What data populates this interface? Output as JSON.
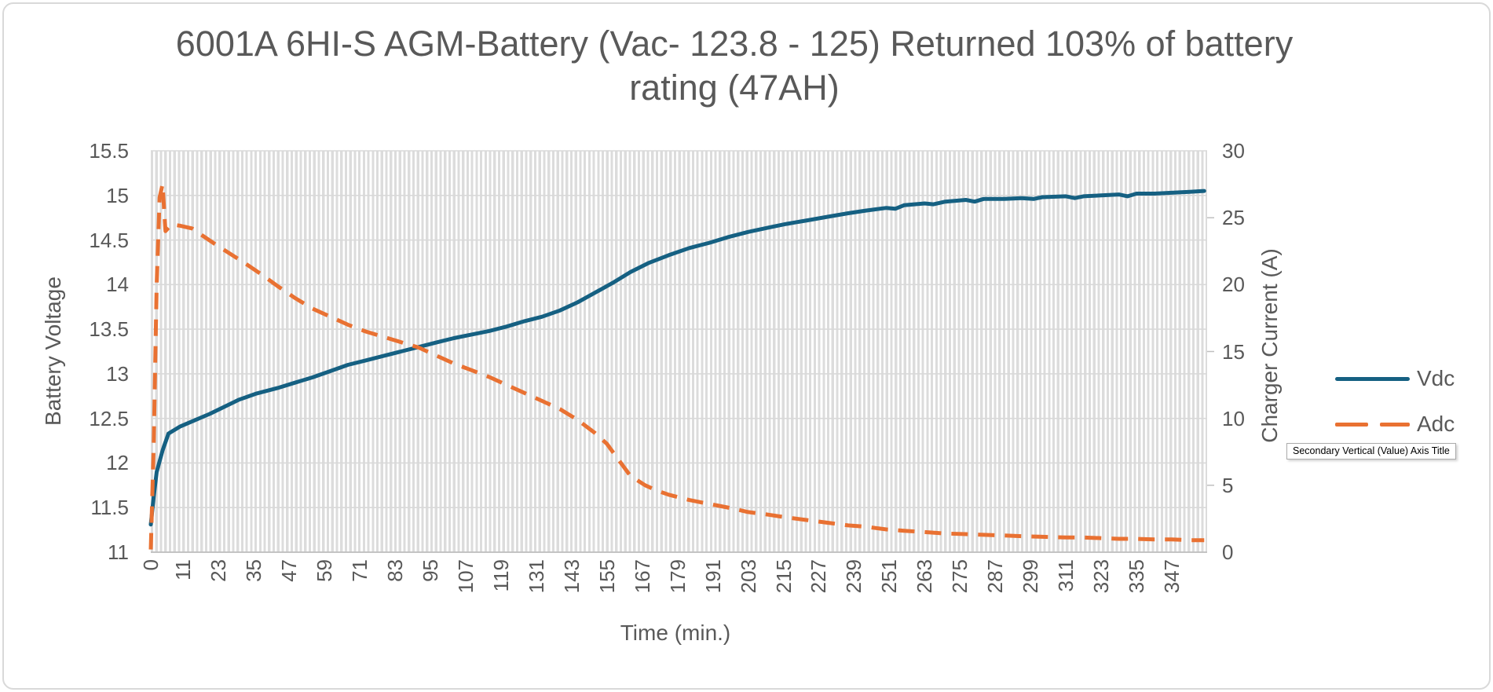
{
  "title": {
    "lines": [
      "6001A 6HI-S AGM-Battery (Vac- 123.8 - 125) Returned 103% of battery",
      "rating (47AH)"
    ]
  },
  "tooltip": {
    "text": "Secondary Vertical (Value) Axis Title"
  },
  "colors": {
    "vdc": "#156082",
    "adc": "#E97132",
    "text_gray": "#595959",
    "gridline": "#D9D9D9",
    "axis_line": "#BFBFBF"
  },
  "chart_data": {
    "type": "line",
    "title": "6001A 6HI-S AGM-Battery (Vac- 123.8 - 125) Returned 103% of battery rating (47AH)",
    "xlabel": "Time (min.)",
    "ylabel_left": "Battery Voltage",
    "ylabel_right": "Charger Current (A)",
    "legend_position": "right",
    "grid": true,
    "x_range": [
      0,
      359
    ],
    "y1_lim": [
      11,
      15.5
    ],
    "y2_lim": [
      0,
      30
    ],
    "x_ticks": [
      0,
      11,
      23,
      35,
      47,
      59,
      71,
      83,
      95,
      107,
      119,
      131,
      143,
      155,
      167,
      179,
      191,
      203,
      215,
      227,
      239,
      251,
      263,
      275,
      287,
      299,
      311,
      323,
      335,
      347
    ],
    "y1_ticks": [
      15.5,
      15,
      14.5,
      14,
      13.5,
      13,
      12.5,
      12,
      11.5,
      11
    ],
    "y2_ticks": [
      30,
      25,
      20,
      15,
      10,
      5,
      0
    ],
    "y2_minor_tick_marks": [
      25,
      15,
      5
    ],
    "series": [
      {
        "name": "Vdc",
        "axis": "left",
        "color": "#156082",
        "style": "solid",
        "points": [
          [
            0,
            11.31
          ],
          [
            1,
            11.62
          ],
          [
            2,
            11.9
          ],
          [
            4,
            12.14
          ],
          [
            6,
            12.33
          ],
          [
            10,
            12.41
          ],
          [
            15,
            12.48
          ],
          [
            20,
            12.55
          ],
          [
            25,
            12.63
          ],
          [
            30,
            12.71
          ],
          [
            36,
            12.78
          ],
          [
            43,
            12.84
          ],
          [
            49,
            12.9
          ],
          [
            55,
            12.96
          ],
          [
            61,
            13.03
          ],
          [
            67,
            13.1
          ],
          [
            73,
            13.15
          ],
          [
            79,
            13.2
          ],
          [
            85,
            13.25
          ],
          [
            91,
            13.3
          ],
          [
            97,
            13.35
          ],
          [
            103,
            13.4
          ],
          [
            109,
            13.44
          ],
          [
            115,
            13.48
          ],
          [
            121,
            13.53
          ],
          [
            127,
            13.59
          ],
          [
            133,
            13.64
          ],
          [
            139,
            13.71
          ],
          [
            145,
            13.8
          ],
          [
            151,
            13.91
          ],
          [
            157,
            14.02
          ],
          [
            163,
            14.14
          ],
          [
            169,
            14.24
          ],
          [
            176,
            14.33
          ],
          [
            183,
            14.41
          ],
          [
            190,
            14.47
          ],
          [
            196,
            14.53
          ],
          [
            203,
            14.59
          ],
          [
            210,
            14.64
          ],
          [
            216,
            14.68
          ],
          [
            223,
            14.72
          ],
          [
            230,
            14.76
          ],
          [
            237,
            14.8
          ],
          [
            243,
            14.83
          ],
          [
            250,
            14.86
          ],
          [
            253,
            14.85
          ],
          [
            256,
            14.89
          ],
          [
            263,
            14.91
          ],
          [
            266,
            14.9
          ],
          [
            270,
            14.93
          ],
          [
            277,
            14.95
          ],
          [
            280,
            14.93
          ],
          [
            283,
            14.96
          ],
          [
            290,
            14.96
          ],
          [
            296,
            14.97
          ],
          [
            300,
            14.96
          ],
          [
            303,
            14.98
          ],
          [
            311,
            14.99
          ],
          [
            314,
            14.97
          ],
          [
            317,
            14.99
          ],
          [
            323,
            15.0
          ],
          [
            329,
            15.01
          ],
          [
            332,
            14.99
          ],
          [
            335,
            15.02
          ],
          [
            341,
            15.02
          ],
          [
            347,
            15.03
          ],
          [
            353,
            15.04
          ],
          [
            358,
            15.05
          ]
        ]
      },
      {
        "name": "Adc",
        "axis": "right",
        "color": "#E97132",
        "style": "dashed",
        "points": [
          [
            0,
            0.2
          ],
          [
            1,
            8
          ],
          [
            2,
            20
          ],
          [
            3,
            26.5
          ],
          [
            4,
            27.5
          ],
          [
            5,
            24.0
          ],
          [
            7,
            24.5
          ],
          [
            10,
            24.4
          ],
          [
            14,
            24.2
          ],
          [
            18,
            23.6
          ],
          [
            22,
            23.0
          ],
          [
            27,
            22.3
          ],
          [
            32,
            21.6
          ],
          [
            38,
            20.7
          ],
          [
            43,
            19.9
          ],
          [
            49,
            19.0
          ],
          [
            55,
            18.2
          ],
          [
            61,
            17.6
          ],
          [
            67,
            17.0
          ],
          [
            73,
            16.5
          ],
          [
            79,
            16.1
          ],
          [
            85,
            15.7
          ],
          [
            91,
            15.3
          ],
          [
            97,
            14.7
          ],
          [
            103,
            14.1
          ],
          [
            109,
            13.6
          ],
          [
            115,
            13.1
          ],
          [
            121,
            12.5
          ],
          [
            127,
            11.9
          ],
          [
            133,
            11.3
          ],
          [
            139,
            10.7
          ],
          [
            145,
            9.9
          ],
          [
            151,
            8.9
          ],
          [
            155,
            8.1
          ],
          [
            159,
            6.9
          ],
          [
            163,
            5.7
          ],
          [
            168,
            5.0
          ],
          [
            172,
            4.6
          ],
          [
            176,
            4.3
          ],
          [
            183,
            3.9
          ],
          [
            190,
            3.6
          ],
          [
            197,
            3.3
          ],
          [
            203,
            3.0
          ],
          [
            210,
            2.8
          ],
          [
            216,
            2.6
          ],
          [
            223,
            2.4
          ],
          [
            230,
            2.2
          ],
          [
            237,
            2.0
          ],
          [
            243,
            1.9
          ],
          [
            250,
            1.7
          ],
          [
            256,
            1.6
          ],
          [
            263,
            1.5
          ],
          [
            270,
            1.4
          ],
          [
            277,
            1.35
          ],
          [
            283,
            1.3
          ],
          [
            290,
            1.25
          ],
          [
            296,
            1.2
          ],
          [
            303,
            1.15
          ],
          [
            311,
            1.1
          ],
          [
            317,
            1.1
          ],
          [
            323,
            1.05
          ],
          [
            329,
            1.0
          ],
          [
            335,
            1.0
          ],
          [
            341,
            0.95
          ],
          [
            347,
            0.95
          ],
          [
            353,
            0.9
          ],
          [
            358,
            0.9
          ]
        ]
      }
    ]
  }
}
